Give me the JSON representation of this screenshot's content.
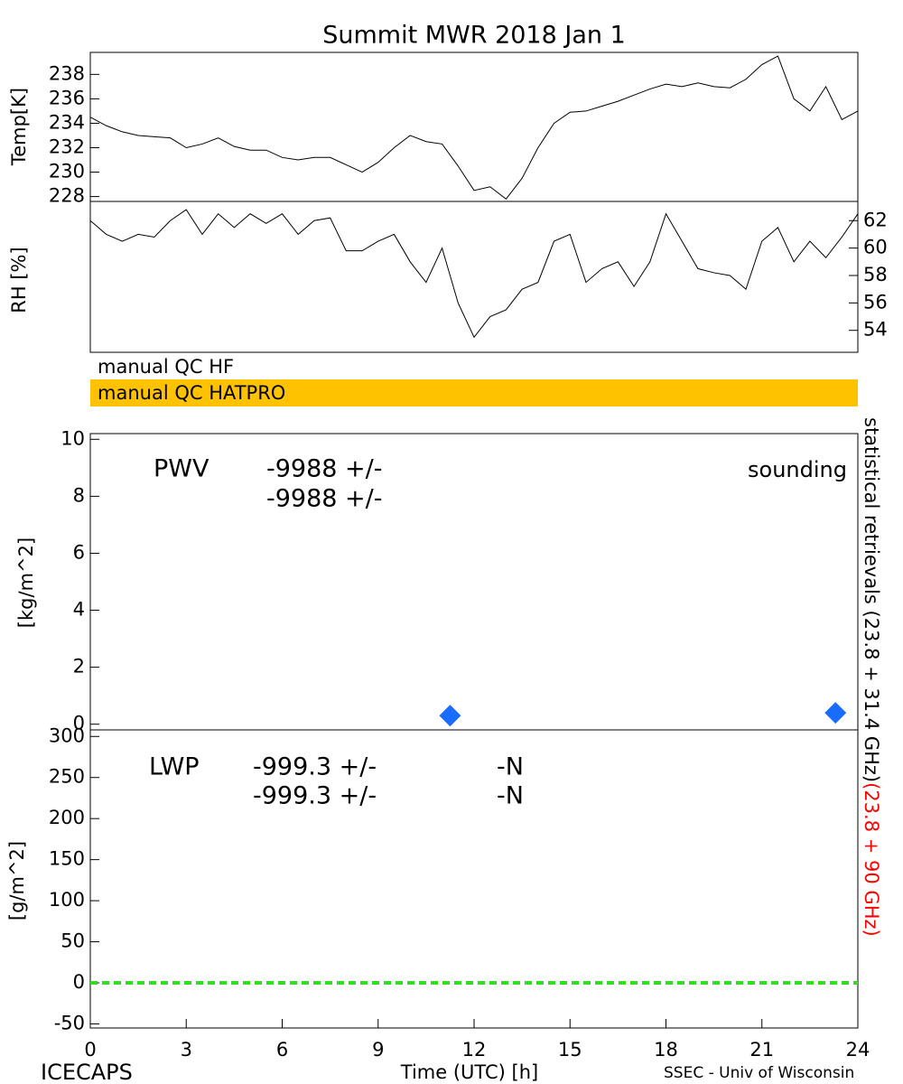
{
  "title": "Summit MWR 2018 Jan  1",
  "qc_flags": [
    {
      "label": "manual QC HF",
      "color": "#ffffff"
    },
    {
      "label": "manual QC HATPRO",
      "color": "#ffc200"
    }
  ],
  "side_label": {
    "parts": [
      {
        "text": "statistical retrievals (23.8 + 31.4 GHz)",
        "color": "#000000"
      },
      {
        "text": "(23.8 + 90 GHz)",
        "color": "#ff0000"
      }
    ]
  },
  "footer": {
    "left": "ICECAPS",
    "right": "SSEC - Univ of Wisconsin"
  },
  "chart_data": [
    {
      "type": "line",
      "ylabel": "Temp[K]",
      "xlim": [
        0,
        24
      ],
      "ylim": [
        227.6,
        239.8
      ],
      "yticks": [
        228,
        230,
        232,
        234,
        236,
        238
      ],
      "x": [
        0,
        0.5,
        1,
        1.5,
        2,
        2.5,
        3,
        3.5,
        4,
        4.5,
        5,
        5.5,
        6,
        6.5,
        7,
        7.5,
        8,
        8.5,
        9,
        9.5,
        10,
        10.5,
        11,
        11.5,
        12,
        12.5,
        13,
        13.5,
        14,
        14.5,
        15,
        15.5,
        16,
        16.5,
        17,
        17.5,
        18,
        18.5,
        19,
        19.5,
        20,
        20.5,
        21,
        21.5,
        22,
        22.5,
        23,
        23.5,
        24
      ],
      "series": [
        {
          "color": "#000000",
          "values": [
            234.5,
            233.8,
            233.3,
            233.0,
            232.9,
            232.8,
            232.0,
            232.3,
            232.8,
            232.1,
            231.8,
            231.8,
            231.2,
            231.0,
            231.2,
            231.2,
            230.6,
            230.0,
            230.8,
            232.0,
            233.0,
            232.5,
            232.3,
            230.5,
            228.5,
            228.8,
            227.8,
            229.5,
            232.0,
            234.0,
            234.9,
            235.0,
            235.4,
            235.8,
            236.3,
            236.8,
            237.2,
            237.0,
            237.3,
            237.0,
            236.9,
            237.6,
            238.8,
            239.5,
            236.0,
            235.0,
            237.0,
            234.3,
            235.0
          ]
        }
      ]
    },
    {
      "type": "line",
      "ylabel": "RH [%]",
      "xlim": [
        0,
        24
      ],
      "y2lim": [
        52.4,
        63.4
      ],
      "y2ticks": [
        54,
        56,
        58,
        60,
        62
      ],
      "x": [
        0,
        0.5,
        1,
        1.5,
        2,
        2.5,
        3,
        3.5,
        4,
        4.5,
        5,
        5.5,
        6,
        6.5,
        7,
        7.5,
        8,
        8.5,
        9,
        9.5,
        10,
        10.5,
        11,
        11.5,
        12,
        12.5,
        13,
        13.5,
        14,
        14.5,
        15,
        15.5,
        16,
        16.5,
        17,
        17.5,
        18,
        18.5,
        19,
        19.5,
        20,
        20.5,
        21,
        21.5,
        22,
        22.5,
        23,
        23.5,
        24
      ],
      "series": [
        {
          "color": "#000000",
          "axis": "y2",
          "values": [
            62.0,
            61.0,
            60.5,
            61.0,
            60.8,
            62.0,
            62.8,
            61.0,
            62.5,
            61.5,
            62.5,
            61.8,
            62.5,
            61.0,
            62.0,
            62.2,
            59.8,
            59.8,
            60.5,
            61.0,
            59.0,
            57.5,
            60.0,
            56.0,
            53.5,
            55.0,
            55.5,
            57.0,
            57.5,
            60.5,
            61.0,
            57.5,
            58.5,
            59.0,
            57.2,
            59.0,
            62.5,
            60.5,
            58.5,
            58.2,
            58.0,
            57.0,
            60.5,
            61.5,
            59.0,
            60.5,
            59.3,
            60.8,
            62.5
          ]
        }
      ]
    },
    {
      "type": "scatter",
      "ylabel": "[kg/m^2]",
      "xlim": [
        0,
        24
      ],
      "ylim": [
        -0.2,
        10.2
      ],
      "yticks": [
        0,
        2,
        4,
        6,
        8,
        10
      ],
      "x": [
        11.25,
        23.3
      ],
      "series": [
        {
          "name": "sounding",
          "color": "#1a6bff",
          "values": [
            0.3,
            0.4
          ]
        }
      ],
      "annotations": [
        {
          "text": "PWV",
          "color": "#000000"
        },
        {
          "text": "-9988 +/-",
          "color": "#000000"
        },
        {
          "text": "-9988 +/-",
          "color": "#ff0000"
        }
      ]
    },
    {
      "type": "line",
      "ylabel": "[g/m^2]",
      "xlabel": "Time (UTC) [h]",
      "xlim": [
        0,
        24
      ],
      "ylim": [
        -55,
        308
      ],
      "yticks": [
        -50,
        0,
        50,
        100,
        150,
        200,
        250,
        300
      ],
      "xticks": [
        0,
        3,
        6,
        9,
        12,
        15,
        18,
        21,
        24
      ],
      "x": [
        0,
        24
      ],
      "series": [
        {
          "color": "#33dd22",
          "dashed": true,
          "values": [
            0,
            0
          ]
        }
      ],
      "annotations": [
        {
          "text": "LWP",
          "color": "#000000"
        },
        {
          "text": "-999.3 +/-",
          "color": "#000000"
        },
        {
          "text": "-N",
          "color": "#000000"
        },
        {
          "text": "-999.3 +/-",
          "color": "#ff0000"
        },
        {
          "text": "-N",
          "color": "#ff0000"
        }
      ]
    }
  ]
}
